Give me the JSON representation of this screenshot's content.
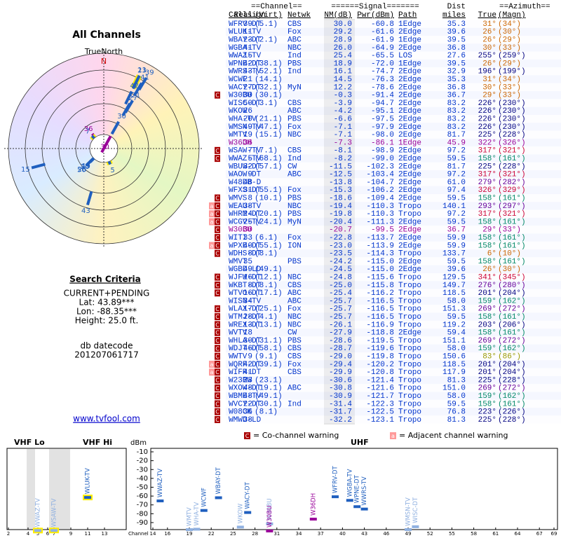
{
  "polar": {
    "title": "All Channels",
    "north_label": "TrueNorth",
    "north": "N"
  },
  "sidebar": {
    "heading": "Search Criteria",
    "lines": [
      "CURRENT+PENDING",
      "Lat: 43.89***",
      "Lon: -88.35***",
      "Height: 25.0 ft."
    ],
    "datecode_label": "db datecode",
    "datecode": "201207061717",
    "link": "www.tvfool.com"
  },
  "table": {
    "head1": [
      "==Channel==",
      "======Signal=======",
      "Dist",
      "==Azimuth=="
    ],
    "head2": [
      "Callsign",
      "Real",
      "(Virt)",
      "Netwk",
      "NM(dB)",
      "Pwr(dBm)",
      "Path",
      "miles",
      "True",
      "(Magn)"
    ],
    "text_color": "#0033cc",
    "rows": [
      {
        "cells": [
          "WFRV-DT",
          39,
          "(5.1)",
          "CBS",
          "30.0",
          "-60.8",
          "1Edge",
          "35.3",
          "31°",
          "(34°)"
        ]
      },
      {
        "cells": [
          "WLUK-TV",
          11,
          null,
          "Fox",
          "29.2",
          "-61.6",
          "2Edge",
          "39.6",
          "26°",
          "(30°)"
        ]
      },
      {
        "cells": [
          "WBAY-DT",
          23,
          "(2.1)",
          "ABC",
          "28.9",
          "-61.9",
          "1Edge",
          "39.5",
          "26°",
          "(29°)"
        ]
      },
      {
        "cells": [
          "WGBA-TV",
          41,
          null,
          "NBC",
          "26.0",
          "-64.9",
          "2Edge",
          "36.8",
          "30°",
          "(33°)"
        ]
      },
      {
        "cells": [
          "WWAZ-TV",
          15,
          null,
          "Ind",
          "25.4",
          "-65.5",
          "LOS",
          "27.6",
          "255°",
          "(259°)"
        ]
      },
      {
        "cells": [
          "WPNE-DT",
          42,
          "(38.1)",
          "PBS",
          "18.9",
          "-72.0",
          "1Edge",
          "39.5",
          "26°",
          "(29°)"
        ]
      },
      {
        "cells": [
          "WWRS-TV",
          43,
          "(52.1)",
          "Ind",
          "16.1",
          "-74.7",
          "2Edge",
          "32.9",
          "196°",
          "(199°)"
        ]
      },
      {
        "cells": [
          "WCWF",
          21,
          "(14.1)",
          null,
          "14.5",
          "-76.3",
          "2Edge",
          "35.3",
          "31°",
          "(34°)"
        ]
      },
      {
        "cells": [
          "WACY-DT",
          27,
          "(32.1)",
          "MyN",
          "12.2",
          "-78.6",
          "2Edge",
          "36.8",
          "30°",
          "(33°)"
        ]
      },
      {
        "cells": [
          "W30BU",
          30,
          "(30.1)",
          null,
          "-0.3",
          "-91.4",
          "2Edge",
          "36.7",
          "29°",
          "(33°)"
        ],
        "warn": [
          "C"
        ]
      },
      {
        "cells": [
          "WISC-DT",
          50,
          "(3.1)",
          "CBS",
          "-3.9",
          "-94.7",
          "2Edge",
          "83.2",
          "226°",
          "(230°)"
        ]
      },
      {
        "cells": [
          "WKOW",
          26,
          null,
          "ABC",
          "-4.2",
          "-95.1",
          "2Edge",
          "83.2",
          "226°",
          "(230°)"
        ]
      },
      {
        "cells": [
          "WHA-TV",
          20,
          "(21.1)",
          "PBS",
          "-6.6",
          "-97.5",
          "2Edge",
          "83.2",
          "226°",
          "(230°)"
        ]
      },
      {
        "cells": [
          "WMSN-TV",
          49,
          "(47.1)",
          "Fox",
          "-7.1",
          "-97.9",
          "2Edge",
          "83.2",
          "226°",
          "(230°)"
        ]
      },
      {
        "cells": [
          "WMTV",
          19,
          "(15.1)",
          "NBC",
          "-7.1",
          "-98.0",
          "2Edge",
          "81.7",
          "225°",
          "(228°)"
        ]
      },
      {
        "cells": [
          "W36DH",
          36,
          null,
          null,
          "-7.3",
          "-86.1",
          "1Edge",
          "45.9",
          "322°",
          "(326°)"
        ],
        "color": "#990099"
      },
      {
        "cells": [
          "WSAW-TV",
          7,
          "(7.1)",
          "CBS",
          "-8.1",
          "-98.9",
          "2Edge",
          "97.2",
          "317°",
          "(321°)"
        ],
        "warn": [
          "C"
        ]
      },
      {
        "cells": [
          "WWAZ-TV",
          5,
          "(68.1)",
          "Ind",
          "-8.2",
          "-99.0",
          "2Edge",
          "59.5",
          "158°",
          "(161°)"
        ],
        "warn": [
          "C"
        ]
      },
      {
        "cells": [
          "WBUW-DT",
          32,
          "(57.1)",
          "CW",
          "-11.5",
          "-102.3",
          "2Edge",
          "81.7",
          "225°",
          "(228°)"
        ]
      },
      {
        "cells": [
          "WAOW-DT",
          9,
          null,
          "ABC",
          "-12.5",
          "-103.4",
          "2Edge",
          "97.2",
          "317°",
          "(321°)"
        ]
      },
      {
        "cells": [
          "W48DB-D",
          48,
          null,
          null,
          "-13.8",
          "-104.7",
          "2Edge",
          "61.0",
          "279°",
          "(282°)"
        ]
      },
      {
        "cells": [
          "WFXS-DT",
          31,
          "(55.1)",
          "Fox",
          "-15.3",
          "-106.2",
          "2Edge",
          "97.4",
          "326°",
          "(329°)"
        ]
      },
      {
        "cells": [
          "WMVS",
          8,
          "(10.1)",
          "PBS",
          "-18.6",
          "-109.4",
          "2Edge",
          "59.5",
          "158°",
          "(161°)"
        ],
        "warn": [
          "C"
        ]
      },
      {
        "cells": [
          "WEAU-TV",
          38,
          null,
          "NBC",
          "-19.4",
          "-110.3",
          "Tropo",
          "140.1",
          "293°",
          "(297°)"
        ],
        "warn": [
          "a",
          "C"
        ]
      },
      {
        "cells": [
          "WHRM-DT",
          24,
          "(20.1)",
          "PBS",
          "-19.8",
          "-110.3",
          "Tropo",
          "97.2",
          "317°",
          "(321°)"
        ],
        "warn": [
          "a",
          "C"
        ]
      },
      {
        "cells": [
          "WCGV-TV",
          25,
          "(24.1)",
          "MyN",
          "-20.4",
          "-111.3",
          "2Edge",
          "59.5",
          "158°",
          "(161°)"
        ],
        "warn": [
          "a",
          "C"
        ]
      },
      {
        "cells": [
          "W30BU",
          30,
          null,
          null,
          "-20.7",
          "-99.5",
          "2Edge",
          "36.7",
          "29°",
          "(33°)"
        ],
        "warn": [
          "C"
        ],
        "color": "#990099"
      },
      {
        "cells": [
          "WITI",
          33,
          "(6.1)",
          "Fox",
          "-22.8",
          "-113.7",
          "2Edge",
          "59.9",
          "158°",
          "(161°)"
        ],
        "warn": [
          "C"
        ]
      },
      {
        "cells": [
          "WPXE-DT",
          40,
          "(55.1)",
          "ION",
          "-23.0",
          "-113.9",
          "2Edge",
          "59.9",
          "158°",
          "(161°)"
        ],
        "warn": [
          "a",
          "C"
        ]
      },
      {
        "cells": [
          "WDHS-DT",
          8,
          "(8.1)",
          null,
          "-23.5",
          "-114.3",
          "Tropo",
          "133.7",
          "6°",
          "(10°)"
        ],
        "warn": [
          "C"
        ]
      },
      {
        "cells": [
          "WMVT",
          35,
          null,
          "PBS",
          "-24.2",
          "-115.0",
          "2Edge",
          "59.5",
          "158°",
          "(161°)"
        ]
      },
      {
        "cells": [
          "WGBD-LD",
          49,
          "(49.1)",
          null,
          "-24.5",
          "-115.0",
          "2Edge",
          "39.6",
          "26°",
          "(30°)"
        ]
      },
      {
        "cells": [
          "WJFW-DT",
          16,
          "(12.1)",
          "NBC",
          "-24.8",
          "-115.6",
          "Tropo",
          "129.5",
          "341°",
          "(345°)"
        ],
        "warn": [
          "C"
        ]
      },
      {
        "cells": [
          "WKBT-DT",
          8,
          "(8.1)",
          "CBS",
          "-25.0",
          "-115.8",
          "Tropo",
          "149.7",
          "276°",
          "(280°)"
        ],
        "warn": [
          "C"
        ]
      },
      {
        "cells": [
          "WTVO-DT",
          16,
          "(17.1)",
          "ABC",
          "-25.4",
          "-116.2",
          "Tropo",
          "118.5",
          "201°",
          "(204°)"
        ],
        "warn": [
          "C"
        ]
      },
      {
        "cells": [
          "WISN-TV",
          34,
          null,
          "ABC",
          "-25.7",
          "-116.5",
          "Tropo",
          "58.0",
          "159°",
          "(162°)"
        ]
      },
      {
        "cells": [
          "WLAX-DT",
          17,
          "(25.1)",
          "Fox",
          "-25.7",
          "-116.5",
          "Tropo",
          "151.3",
          "269°",
          "(272°)"
        ],
        "warn": [
          "C"
        ]
      },
      {
        "cells": [
          "WTMJ-DT",
          28,
          "(4.1)",
          "NBC",
          "-25.7",
          "-116.5",
          "Tropo",
          "59.5",
          "158°",
          "(161°)"
        ],
        "warn": [
          "C"
        ]
      },
      {
        "cells": [
          "WREX-DT",
          13,
          "(13.1)",
          "NBC",
          "-26.1",
          "-116.9",
          "Tropo",
          "119.2",
          "203°",
          "(206°)"
        ],
        "warn": [
          "C"
        ]
      },
      {
        "cells": [
          "WVTV",
          18,
          null,
          "CW",
          "-27.9",
          "-118.8",
          "2Edge",
          "59.4",
          "158°",
          "(161°)"
        ],
        "warn": [
          "C"
        ]
      },
      {
        "cells": [
          "WHLA-DT",
          30,
          "(31.1)",
          "PBS",
          "-28.6",
          "-119.5",
          "Tropo",
          "151.1",
          "269°",
          "(272°)"
        ],
        "warn": [
          "C"
        ]
      },
      {
        "cells": [
          "WDJT-DT",
          46,
          "(58.1)",
          "CBS",
          "-28.7",
          "-119.6",
          "Tropo",
          "58.0",
          "159°",
          "(162°)"
        ],
        "warn": [
          "C"
        ]
      },
      {
        "cells": [
          "WWTV",
          9,
          "(9.1)",
          "CBS",
          "-29.0",
          "-119.8",
          "Tropo",
          "150.6",
          "83°",
          "(86°)"
        ],
        "warn": [
          "C"
        ]
      },
      {
        "cells": [
          "WQRF-DT",
          42,
          "(39.1)",
          "Fox",
          "-29.4",
          "-120.2",
          "Tropo",
          "118.5",
          "201°",
          "(204°)"
        ],
        "warn": [
          "a",
          "C"
        ]
      },
      {
        "cells": [
          "WIFR-DT",
          41,
          null,
          "CBS",
          "-29.9",
          "-120.8",
          "Tropo",
          "117.9",
          "201°",
          "(204°)"
        ],
        "warn": [
          "a",
          "C"
        ]
      },
      {
        "cells": [
          "W23BW",
          23,
          "(23.1)",
          null,
          "-30.6",
          "-121.4",
          "Tropo",
          "81.3",
          "225°",
          "(228°)"
        ],
        "warn": [
          "C"
        ]
      },
      {
        "cells": [
          "WXOW-DT",
          48,
          "(19.1)",
          "ABC",
          "-30.8",
          "-121.6",
          "Tropo",
          "151.0",
          "269°",
          "(272°)"
        ],
        "warn": [
          "C"
        ]
      },
      {
        "cells": [
          "WBME-TV",
          48,
          "(49.1)",
          null,
          "-30.9",
          "-121.7",
          "Tropo",
          "58.0",
          "159°",
          "(162°)"
        ],
        "warn": [
          "C"
        ]
      },
      {
        "cells": [
          "WVCY-DT",
          22,
          "(30.1)",
          "Ind",
          "-31.4",
          "-122.3",
          "Tropo",
          "59.5",
          "158°",
          "(161°)"
        ],
        "warn": [
          "C"
        ]
      },
      {
        "cells": [
          "W08CK",
          36,
          "(8.1)",
          null,
          "-31.7",
          "-122.5",
          "Tropo",
          "76.8",
          "223°",
          "(226°)"
        ],
        "warn": [
          "C"
        ]
      },
      {
        "cells": [
          "WMWD-LD",
          38,
          null,
          null,
          "-32.2",
          "-123.1",
          "Tropo",
          "81.3",
          "225°",
          "(228°)"
        ],
        "warn": [
          "C"
        ]
      }
    ]
  },
  "legend": [
    {
      "symbol": "C",
      "text": "= Co-channel warning"
    },
    {
      "symbol": "a",
      "text": "= Adjacent channel warning"
    }
  ],
  "spectrum": {
    "vhf_lo": "VHF Lo",
    "vhf_hi": "VHF Hi",
    "uhf": "UHF",
    "y_label": "dBm",
    "x_label": "Channel",
    "ylim": [
      -100,
      -5
    ],
    "yticks": [
      -10,
      -20,
      -30,
      -40,
      -50,
      -60,
      -70,
      -80,
      -90
    ],
    "vhf_lo_ticks": [
      2,
      4,
      5,
      6
    ],
    "vhf_hi_ticks": [
      7,
      9,
      11,
      13
    ],
    "uhf_ticks": [
      14,
      16,
      19,
      22,
      25,
      28,
      31,
      34,
      37,
      40,
      43,
      46,
      49,
      52,
      55,
      58,
      61,
      64,
      67,
      69
    ],
    "bar_color": "#1f5fbf"
  }
}
